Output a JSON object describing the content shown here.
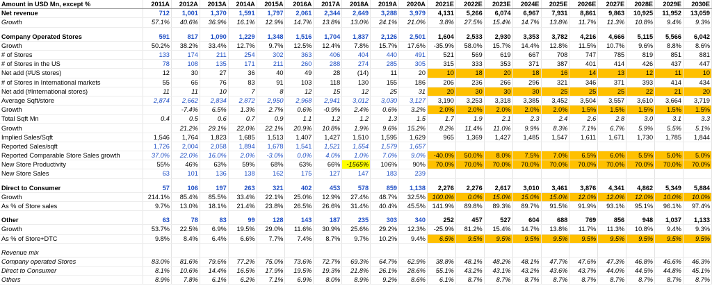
{
  "columns": [
    "Amount in USD Mn, except %",
    "2011A",
    "2012A",
    "2013A",
    "2014A",
    "2015A",
    "2016A",
    "2017A",
    "2018A",
    "2019A",
    "2020A",
    "2021E",
    "2022E",
    "2023E",
    "2024E",
    "2025E",
    "2026E",
    "2027E",
    "2028E",
    "2029E",
    "2030E"
  ],
  "colors": {
    "highlight_orange": "#ffc000",
    "highlight_yellow": "#ffff00",
    "input_blue": "#1f4fc4"
  },
  "rows": [
    {
      "label": "Net revenue",
      "style": "bold",
      "values": [
        "712",
        "1,001",
        "1,370",
        "1,591",
        "1,797",
        "2,061",
        "2,344",
        "2,649",
        "3,288",
        "3,979",
        "4,131",
        "5,266",
        "6,074",
        "6,967",
        "7,931",
        "8,861",
        "9,863",
        "10,925",
        "11,952",
        "13,059"
      ],
      "blue": [
        0,
        1,
        2,
        3,
        4,
        5,
        6,
        7,
        8,
        9
      ]
    },
    {
      "label": "Growth",
      "style": "italic",
      "values": [
        "57.1%",
        "40.6%",
        "36.9%",
        "16.1%",
        "12.9%",
        "14.7%",
        "13.8%",
        "13.0%",
        "24.1%",
        "21.0%",
        "3.8%",
        "27.5%",
        "15.4%",
        "14.7%",
        "13.8%",
        "11.7%",
        "11.3%",
        "10.8%",
        "9.4%",
        "9.3%"
      ]
    },
    {
      "label": "",
      "style": "blank",
      "values": []
    },
    {
      "label": "Company Operated Stores",
      "style": "bold",
      "values": [
        "591",
        "817",
        "1,090",
        "1,229",
        "1,348",
        "1,516",
        "1,704",
        "1,837",
        "2,126",
        "2,501",
        "1,604",
        "2,533",
        "2,930",
        "3,353",
        "3,782",
        "4,216",
        "4,666",
        "5,115",
        "5,566",
        "6,042"
      ],
      "blue": [
        0,
        1,
        2,
        3,
        4,
        5,
        6,
        7,
        8,
        9
      ]
    },
    {
      "label": "Growth",
      "values": [
        "50.2%",
        "38.2%",
        "33.4%",
        "12.7%",
        "9.7%",
        "12.5%",
        "12.4%",
        "7.8%",
        "15.7%",
        "17.6%",
        "-35.9%",
        "58.0%",
        "15.7%",
        "14.4%",
        "12.8%",
        "11.5%",
        "10.7%",
        "9.6%",
        "8.8%",
        "8.6%"
      ]
    },
    {
      "label": "# of Stores",
      "values": [
        "133",
        "174",
        "211",
        "254",
        "302",
        "363",
        "406",
        "404",
        "440",
        "491",
        "521",
        "569",
        "619",
        "667",
        "708",
        "747",
        "785",
        "819",
        "851",
        "881"
      ],
      "blue": [
        0,
        1,
        2,
        3,
        4,
        5,
        6,
        7,
        8,
        9
      ]
    },
    {
      "label": "# of Stores in the US",
      "values": [
        "78",
        "108",
        "135",
        "171",
        "211",
        "260",
        "288",
        "274",
        "285",
        "305",
        "315",
        "333",
        "353",
        "371",
        "387",
        "401",
        "414",
        "426",
        "437",
        "447"
      ],
      "blue": [
        0,
        1,
        2,
        3,
        4,
        5,
        6,
        7,
        8,
        9
      ]
    },
    {
      "label": "Net add (#US stores)",
      "values": [
        "12",
        "30",
        "27",
        "36",
        "40",
        "49",
        "28",
        "(14)",
        "11",
        "20",
        "10",
        "18",
        "20",
        "18",
        "16",
        "14",
        "13",
        "12",
        "11",
        "10"
      ],
      "orange": [
        10,
        11,
        12,
        13,
        14,
        15,
        16,
        17,
        18,
        19
      ]
    },
    {
      "label": "# of Stores in International markets",
      "values": [
        "55",
        "66",
        "76",
        "83",
        "91",
        "103",
        "118",
        "130",
        "155",
        "186",
        "206",
        "236",
        "266",
        "296",
        "321",
        "346",
        "371",
        "393",
        "414",
        "434"
      ]
    },
    {
      "label": "Net add (#International stores)",
      "values": [
        "11",
        "11",
        "10",
        "7",
        "8",
        "12",
        "15",
        "12",
        "25",
        "31",
        "20",
        "30",
        "30",
        "30",
        "25",
        "25",
        "25",
        "22",
        "21",
        "20"
      ],
      "italic_cols": [
        0,
        1,
        2,
        3,
        4,
        5,
        6,
        7,
        8,
        9
      ],
      "orange": [
        10,
        11,
        12,
        13,
        14,
        15,
        16,
        17,
        18,
        19
      ]
    },
    {
      "label": "Average Sqft/store",
      "values": [
        "2,874",
        "2,662",
        "2,834",
        "2,872",
        "2,950",
        "2,968",
        "2,941",
        "3,012",
        "3,030",
        "3,127",
        "3,190",
        "3,253",
        "3,318",
        "3,385",
        "3,452",
        "3,504",
        "3,557",
        "3,610",
        "3,664",
        "3,719"
      ],
      "blue": [
        0,
        1,
        2,
        3,
        4,
        5,
        6,
        7,
        8,
        9
      ],
      "italic_cols": [
        0,
        1,
        2,
        3,
        4,
        5,
        6,
        7,
        8,
        9
      ]
    },
    {
      "label": "Growth",
      "values": [
        "",
        "-7.4%",
        "6.5%",
        "1.3%",
        "2.7%",
        "0.6%",
        "-0.9%",
        "2.4%",
        "0.6%",
        "3.2%",
        "2.0%",
        "2.0%",
        "2.0%",
        "2.0%",
        "2.0%",
        "1.5%",
        "1.5%",
        "1.5%",
        "1.5%",
        "1.5%"
      ],
      "italic_cols": [
        0,
        1,
        2,
        3,
        4,
        5,
        6,
        7,
        8,
        9
      ],
      "orange": [
        10,
        11,
        12,
        13,
        14,
        15,
        16,
        17,
        18,
        19
      ]
    },
    {
      "label": "Total Sqft Mn",
      "values": [
        "0.4",
        "0.5",
        "0.6",
        "0.7",
        "0.9",
        "1.1",
        "1.2",
        "1.2",
        "1.3",
        "1.5",
        "1.7",
        "1.9",
        "2.1",
        "2.3",
        "2.4",
        "2.6",
        "2.8",
        "3.0",
        "3.1",
        "3.3"
      ],
      "italic_cols": [
        0,
        1,
        2,
        3,
        4,
        5,
        6,
        7,
        8,
        9,
        10,
        11,
        12,
        13,
        14,
        15,
        16,
        17,
        18,
        19
      ]
    },
    {
      "label": "Growth",
      "values": [
        "",
        "21.2%",
        "29.1%",
        "22.0%",
        "22.1%",
        "20.9%",
        "10.8%",
        "1.9%",
        "9.6%",
        "15.2%",
        "8.2%",
        "11.4%",
        "11.0%",
        "9.9%",
        "8.3%",
        "7.1%",
        "6.7%",
        "5.9%",
        "5.5%",
        "5.1%"
      ],
      "italic_cols": [
        0,
        1,
        2,
        3,
        4,
        5,
        6,
        7,
        8,
        9,
        10,
        11,
        12,
        13,
        14,
        15,
        16,
        17,
        18,
        19
      ]
    },
    {
      "label": "Implied Sales/Sqft",
      "values": [
        "1,546",
        "1,764",
        "1,823",
        "1,685",
        "1,513",
        "1,407",
        "1,427",
        "1,510",
        "1,595",
        "1,629",
        "965",
        "1,369",
        "1,427",
        "1,485",
        "1,547",
        "1,611",
        "1,671",
        "1,730",
        "1,785",
        "1,844"
      ]
    },
    {
      "label": "Reported Sales/sqft",
      "values": [
        "1,726",
        "2,004",
        "2,058",
        "1,894",
        "1,678",
        "1,541",
        "1,521",
        "1,554",
        "1,579",
        "1,657"
      ],
      "blue": [
        0,
        1,
        2,
        3,
        4,
        5,
        6,
        7,
        8,
        9
      ],
      "italic_cols": [
        6,
        7,
        8,
        9
      ]
    },
    {
      "label": "Reported Comparable Store Sales growth",
      "values": [
        "37.0%",
        "22.0%",
        "16.0%",
        "2.0%",
        "-3.0%",
        "0.0%",
        "4.0%",
        "1.0%",
        "7.0%",
        "9.0%",
        "-40.0%",
        "50.0%",
        "8.0%",
        "7.5%",
        "7.0%",
        "6.5%",
        "6.0%",
        "5.5%",
        "5.0%",
        "5.0%"
      ],
      "blue": [
        0,
        1,
        2,
        3,
        4,
        5,
        6,
        7,
        8,
        9
      ],
      "italic_cols": [
        0,
        1,
        2,
        3,
        4,
        5,
        6,
        7,
        8,
        9
      ],
      "orange": [
        10,
        11,
        12,
        13,
        14,
        15,
        16,
        17,
        18,
        19
      ]
    },
    {
      "label": "New Store Productivity",
      "values": [
        "55%",
        "46%",
        "63%",
        "59%",
        "68%",
        "63%",
        "66%",
        "-1565%",
        "106%",
        "90%",
        "70.0%",
        "70.0%",
        "70.0%",
        "70.0%",
        "70.0%",
        "70.0%",
        "70.0%",
        "70.0%",
        "70.0%",
        "70.0%"
      ],
      "yellow": [
        7
      ],
      "italic_cols": [
        7
      ],
      "orange": [
        10,
        11,
        12,
        13,
        14,
        15,
        16,
        17,
        18,
        19
      ]
    },
    {
      "label": "New Store Sales",
      "values": [
        "63",
        "101",
        "136",
        "138",
        "162",
        "175",
        "127",
        "147",
        "183",
        "239"
      ],
      "blue": [
        0,
        1,
        2,
        3,
        4,
        5,
        6,
        7,
        8,
        9
      ]
    },
    {
      "label": "",
      "style": "blank",
      "values": []
    },
    {
      "label": "Direct to Consumer",
      "style": "bold",
      "values": [
        "57",
        "106",
        "197",
        "263",
        "321",
        "402",
        "453",
        "578",
        "859",
        "1,138",
        "2,276",
        "2,276",
        "2,617",
        "3,010",
        "3,461",
        "3,876",
        "4,341",
        "4,862",
        "5,349",
        "5,884"
      ],
      "blue": [
        0,
        1,
        2,
        3,
        4,
        5,
        6,
        7,
        8,
        9
      ]
    },
    {
      "label": "Growth",
      "values": [
        "214.1%",
        "85.4%",
        "85.5%",
        "33.4%",
        "22.1%",
        "25.0%",
        "12.9%",
        "27.4%",
        "48.7%",
        "32.5%",
        "100.0%",
        "0.0%",
        "15.0%",
        "15.0%",
        "15.0%",
        "12.0%",
        "12.0%",
        "12.0%",
        "10.0%",
        "10.0%"
      ],
      "italic_cols": [
        10,
        11,
        12,
        13,
        14,
        15,
        16,
        17,
        18,
        19
      ],
      "orange": [
        10,
        11,
        12,
        13,
        14,
        15,
        16,
        17,
        18,
        19
      ]
    },
    {
      "label": "As % of Store sales",
      "values": [
        "9.7%",
        "13.0%",
        "18.1%",
        "21.4%",
        "23.8%",
        "26.5%",
        "26.6%",
        "31.4%",
        "40.4%",
        "45.5%",
        "141.9%",
        "89.8%",
        "89.3%",
        "89.7%",
        "91.5%",
        "91.9%",
        "93.1%",
        "95.1%",
        "96.1%",
        "97.4%"
      ]
    },
    {
      "label": "",
      "style": "blank",
      "values": []
    },
    {
      "label": "Other",
      "style": "bold",
      "values": [
        "63",
        "78",
        "83",
        "99",
        "128",
        "143",
        "187",
        "235",
        "303",
        "340",
        "252",
        "457",
        "527",
        "604",
        "688",
        "769",
        "856",
        "948",
        "1,037",
        "1,133"
      ],
      "blue": [
        0,
        1,
        2,
        3,
        4,
        5,
        6,
        7,
        8,
        9
      ]
    },
    {
      "label": "Growth",
      "values": [
        "53.7%",
        "22.5%",
        "6.9%",
        "19.5%",
        "29.0%",
        "11.6%",
        "30.9%",
        "25.6%",
        "29.2%",
        "12.3%",
        "-25.9%",
        "81.2%",
        "15.4%",
        "14.7%",
        "13.8%",
        "11.7%",
        "11.3%",
        "10.8%",
        "9.4%",
        "9.3%"
      ]
    },
    {
      "label": "As % of Store+DTC",
      "values": [
        "9.8%",
        "8.4%",
        "6.4%",
        "6.6%",
        "7.7%",
        "7.4%",
        "8.7%",
        "9.7%",
        "10.2%",
        "9.4%",
        "6.5%",
        "9.5%",
        "9.5%",
        "9.5%",
        "9.5%",
        "9.5%",
        "9.5%",
        "9.5%",
        "9.5%",
        "9.5%"
      ],
      "italic_cols": [
        10,
        11,
        12,
        13,
        14,
        15,
        16,
        17,
        18,
        19
      ],
      "orange": [
        10,
        11,
        12,
        13,
        14,
        15,
        16,
        17,
        18,
        19
      ]
    },
    {
      "label": "",
      "style": "blank",
      "values": []
    },
    {
      "label": "Revenue mix",
      "style": "italic",
      "values": []
    },
    {
      "label": "Company operated Stores",
      "style": "italic",
      "values": [
        "83.0%",
        "81.6%",
        "79.6%",
        "77.2%",
        "75.0%",
        "73.6%",
        "72.7%",
        "69.3%",
        "64.7%",
        "62.9%",
        "38.8%",
        "48.1%",
        "48.2%",
        "48.1%",
        "47.7%",
        "47.6%",
        "47.3%",
        "46.8%",
        "46.6%",
        "46.3%"
      ]
    },
    {
      "label": "Direct to Consumer",
      "style": "italic",
      "values": [
        "8.1%",
        "10.6%",
        "14.4%",
        "16.5%",
        "17.9%",
        "19.5%",
        "19.3%",
        "21.8%",
        "26.1%",
        "28.6%",
        "55.1%",
        "43.2%",
        "43.1%",
        "43.2%",
        "43.6%",
        "43.7%",
        "44.0%",
        "44.5%",
        "44.8%",
        "45.1%"
      ]
    },
    {
      "label": "Others",
      "style": "italic",
      "values": [
        "8.9%",
        "7.8%",
        "6.1%",
        "6.2%",
        "7.1%",
        "6.9%",
        "8.0%",
        "8.9%",
        "9.2%",
        "8.6%",
        "6.1%",
        "8.7%",
        "8.7%",
        "8.7%",
        "8.7%",
        "8.7%",
        "8.7%",
        "8.7%",
        "8.7%",
        "8.7%"
      ]
    }
  ]
}
